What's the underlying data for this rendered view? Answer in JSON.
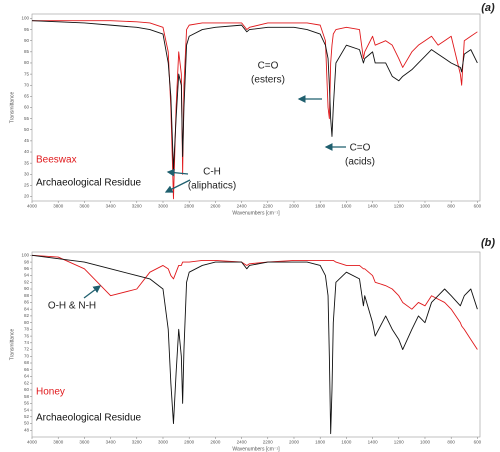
{
  "chart_data": [
    {
      "type": "line",
      "title": "(a)",
      "x_label": "Wavenumbers [cm⁻¹]",
      "y_label": "Transmittance",
      "x": [
        4000,
        3800,
        3600,
        3400,
        3200,
        3100,
        3000,
        2960,
        2940,
        2920,
        2900,
        2880,
        2860,
        2850,
        2840,
        2820,
        2800,
        2700,
        2600,
        2400,
        2360,
        2340,
        2200,
        2000,
        1900,
        1800,
        1760,
        1740,
        1730,
        1720,
        1710,
        1700,
        1680,
        1600,
        1500,
        1470,
        1460,
        1400,
        1380,
        1300,
        1250,
        1200,
        1170,
        1100,
        1050,
        1000,
        950,
        900,
        850,
        800,
        730,
        720,
        700,
        650,
        600
      ],
      "series": [
        {
          "name": "Beeswax",
          "color": "#e0191c",
          "values": [
            99,
            99,
            99,
            99,
            98.5,
            98,
            96,
            85,
            60,
            19,
            60,
            85,
            75,
            30,
            70,
            95,
            97,
            98,
            98,
            98,
            95,
            96,
            98,
            98,
            98,
            97,
            90,
            60,
            55,
            80,
            88,
            93,
            95,
            96,
            95,
            82,
            85,
            92,
            88,
            90,
            88,
            82,
            78,
            85,
            88,
            90,
            92,
            88,
            90,
            92,
            75,
            70,
            90,
            92,
            94
          ]
        },
        {
          "name": "Archaeological Residue",
          "color": "#111111",
          "values": [
            99,
            98.5,
            98,
            97,
            96,
            95,
            93,
            80,
            65,
            32,
            55,
            75,
            70,
            38,
            60,
            88,
            92,
            95,
            96,
            97,
            94,
            95,
            96,
            96,
            95,
            93,
            88,
            82,
            70,
            55,
            47,
            60,
            80,
            88,
            86,
            80,
            82,
            85,
            80,
            80,
            74,
            72,
            74,
            77,
            80,
            83,
            86,
            84,
            82,
            80,
            78,
            76,
            84,
            86,
            80
          ]
        }
      ],
      "xlim": [
        4000,
        580
      ],
      "xticks": [
        4000,
        3800,
        3600,
        3400,
        3200,
        3000,
        2800,
        2600,
        2400,
        2200,
        2000,
        1800,
        1600,
        1400,
        1200,
        1000,
        800,
        600
      ],
      "ylim": [
        18,
        102
      ],
      "yticks": [
        20,
        25,
        30,
        35,
        40,
        45,
        50,
        55,
        60,
        65,
        70,
        75,
        80,
        85,
        90,
        95,
        100
      ],
      "annotations": [
        [
          "C=O",
          "(esters)"
        ],
        [
          "C=O",
          "(acids)"
        ],
        [
          "C-H",
          "(aliphatics)"
        ]
      ]
    },
    {
      "type": "line",
      "title": "(b)",
      "x_label": "Wavenumbers [cm⁻¹]",
      "y_label": "Transmittance",
      "x": [
        4000,
        3800,
        3600,
        3400,
        3200,
        3100,
        3000,
        2960,
        2940,
        2920,
        2900,
        2880,
        2860,
        2850,
        2840,
        2820,
        2800,
        2700,
        2600,
        2400,
        2360,
        2340,
        2200,
        2000,
        1900,
        1800,
        1760,
        1740,
        1730,
        1720,
        1710,
        1700,
        1680,
        1600,
        1500,
        1470,
        1460,
        1400,
        1380,
        1300,
        1250,
        1200,
        1170,
        1100,
        1050,
        1000,
        950,
        900,
        850,
        800,
        730,
        720,
        700,
        650,
        600
      ],
      "series": [
        {
          "name": "Honey",
          "color": "#e0191c",
          "values": [
            100,
            99.5,
            96,
            88,
            90,
            95,
            97,
            96,
            94,
            93,
            95,
            97,
            97,
            98,
            98,
            98,
            98,
            98.5,
            98.5,
            98,
            97,
            97.5,
            98,
            98.5,
            98.5,
            98.5,
            98.5,
            98.5,
            98.5,
            98.5,
            98.5,
            98.5,
            98,
            97,
            97,
            96,
            96,
            94,
            92,
            91,
            90,
            88,
            86,
            84,
            86,
            85,
            88,
            87,
            86,
            84,
            80,
            79,
            78,
            75,
            72
          ]
        },
        {
          "name": "Archaeological Residue",
          "color": "#111111",
          "values": [
            100,
            99,
            98,
            96,
            94,
            93,
            90,
            78,
            62,
            50,
            65,
            78,
            70,
            56,
            72,
            92,
            95,
            97,
            98,
            98,
            96,
            97,
            98,
            98,
            98,
            97,
            94,
            88,
            70,
            47,
            60,
            80,
            92,
            95,
            93,
            85,
            88,
            80,
            76,
            82,
            78,
            75,
            72,
            78,
            82,
            80,
            86,
            88,
            90,
            88,
            85,
            86,
            88,
            90,
            84
          ]
        }
      ],
      "xlim": [
        4000,
        580
      ],
      "xticks": [
        4000,
        3800,
        3600,
        3400,
        3200,
        3000,
        2800,
        2600,
        2400,
        2200,
        2000,
        1800,
        1600,
        1400,
        1200,
        1000,
        800,
        600
      ],
      "ylim": [
        46,
        101
      ],
      "yticks": [
        48,
        50,
        52,
        54,
        56,
        58,
        60,
        62,
        64,
        66,
        68,
        70,
        72,
        74,
        76,
        78,
        80,
        82,
        84,
        86,
        88,
        90,
        92,
        94,
        96,
        98,
        100
      ],
      "annotations": [
        [
          "O-H & N-H"
        ]
      ]
    }
  ]
}
